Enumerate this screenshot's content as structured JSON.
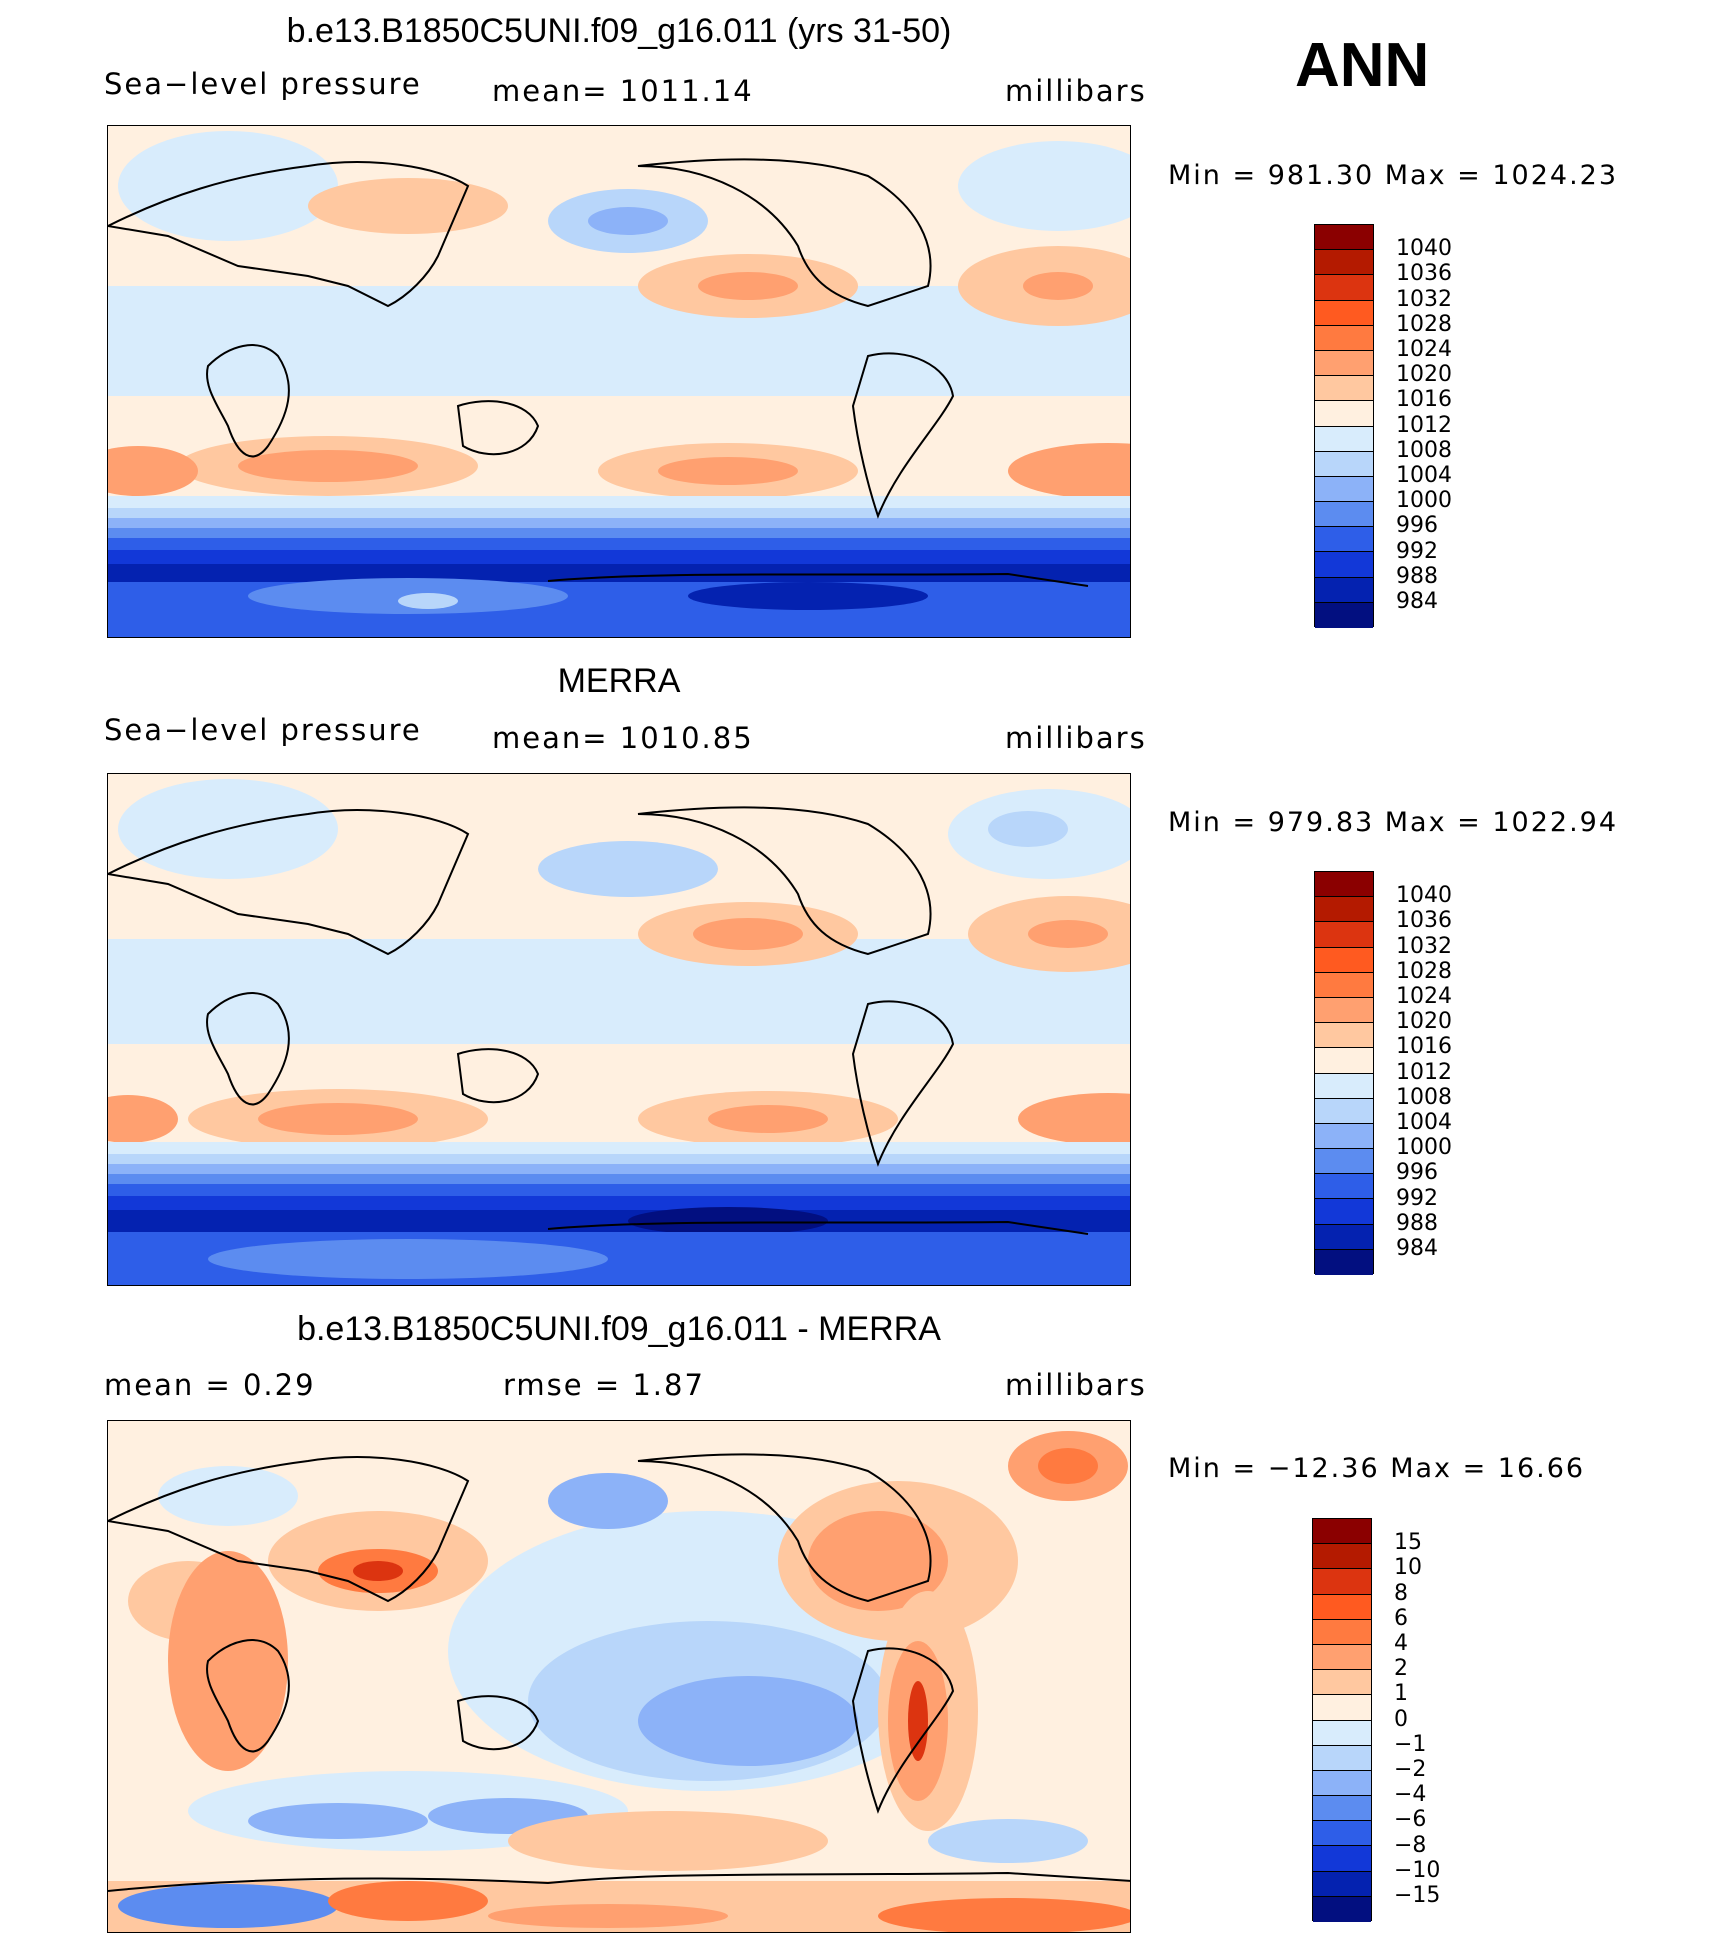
{
  "season": "ANN",
  "panels": [
    {
      "title": "b.e13.B1850C5UNI.f09_g16.011 (yrs 31-50)",
      "left_label": "Sea−level pressure",
      "center_label": "mean=  1011.14",
      "units": "millibars",
      "minmax": "Min  =  981.30  Max  =  1024.23",
      "colorbar": {
        "colors": [
          "#8b0000",
          "#b41a00",
          "#dc3410",
          "#ff5a20",
          "#ff7a40",
          "#ffa070",
          "#ffc8a0",
          "#fff0e0",
          "#d8ecfc",
          "#b8d6fa",
          "#8cb2f8",
          "#5c8cf0",
          "#2e5ee8",
          "#1238d8",
          "#0422b0",
          "#020f80"
        ],
        "labels": [
          "1040",
          "1036",
          "1032",
          "1028",
          "1024",
          "1020",
          "1016",
          "1012",
          "1008",
          "1004",
          "1000",
          "996",
          "992",
          "988",
          "984"
        ]
      }
    },
    {
      "title": "MERRA",
      "left_label": "Sea−level pressure",
      "center_label": "mean=  1010.85",
      "units": "millibars",
      "minmax": "Min  =  979.83  Max  =  1022.94",
      "colorbar": {
        "colors": [
          "#8b0000",
          "#b41a00",
          "#dc3410",
          "#ff5a20",
          "#ff7a40",
          "#ffa070",
          "#ffc8a0",
          "#fff0e0",
          "#d8ecfc",
          "#b8d6fa",
          "#8cb2f8",
          "#5c8cf0",
          "#2e5ee8",
          "#1238d8",
          "#0422b0",
          "#020f80"
        ],
        "labels": [
          "1040",
          "1036",
          "1032",
          "1028",
          "1024",
          "1020",
          "1016",
          "1012",
          "1008",
          "1004",
          "1000",
          "996",
          "992",
          "988",
          "984"
        ]
      }
    },
    {
      "title": "b.e13.B1850C5UNI.f09_g16.011 - MERRA",
      "left_label": "mean  =     0.29",
      "center_label": "rmse  =     1.87",
      "units": "millibars",
      "minmax": "Min  =  −12.36  Max  =    16.66",
      "colorbar": {
        "colors": [
          "#8b0000",
          "#b41a00",
          "#dc3410",
          "#ff5a20",
          "#ff7a40",
          "#ffa070",
          "#ffc8a0",
          "#fff0e0",
          "#d8ecfc",
          "#b8d6fa",
          "#8cb2f8",
          "#5c8cf0",
          "#2e5ee8",
          "#1238d8",
          "#0422b0",
          "#020f80"
        ],
        "labels": [
          "15",
          "10",
          "8",
          "6",
          "4",
          "2",
          "1",
          "0",
          "−1",
          "−2",
          "−4",
          "−6",
          "−8",
          "−10",
          "−15"
        ]
      }
    }
  ]
}
